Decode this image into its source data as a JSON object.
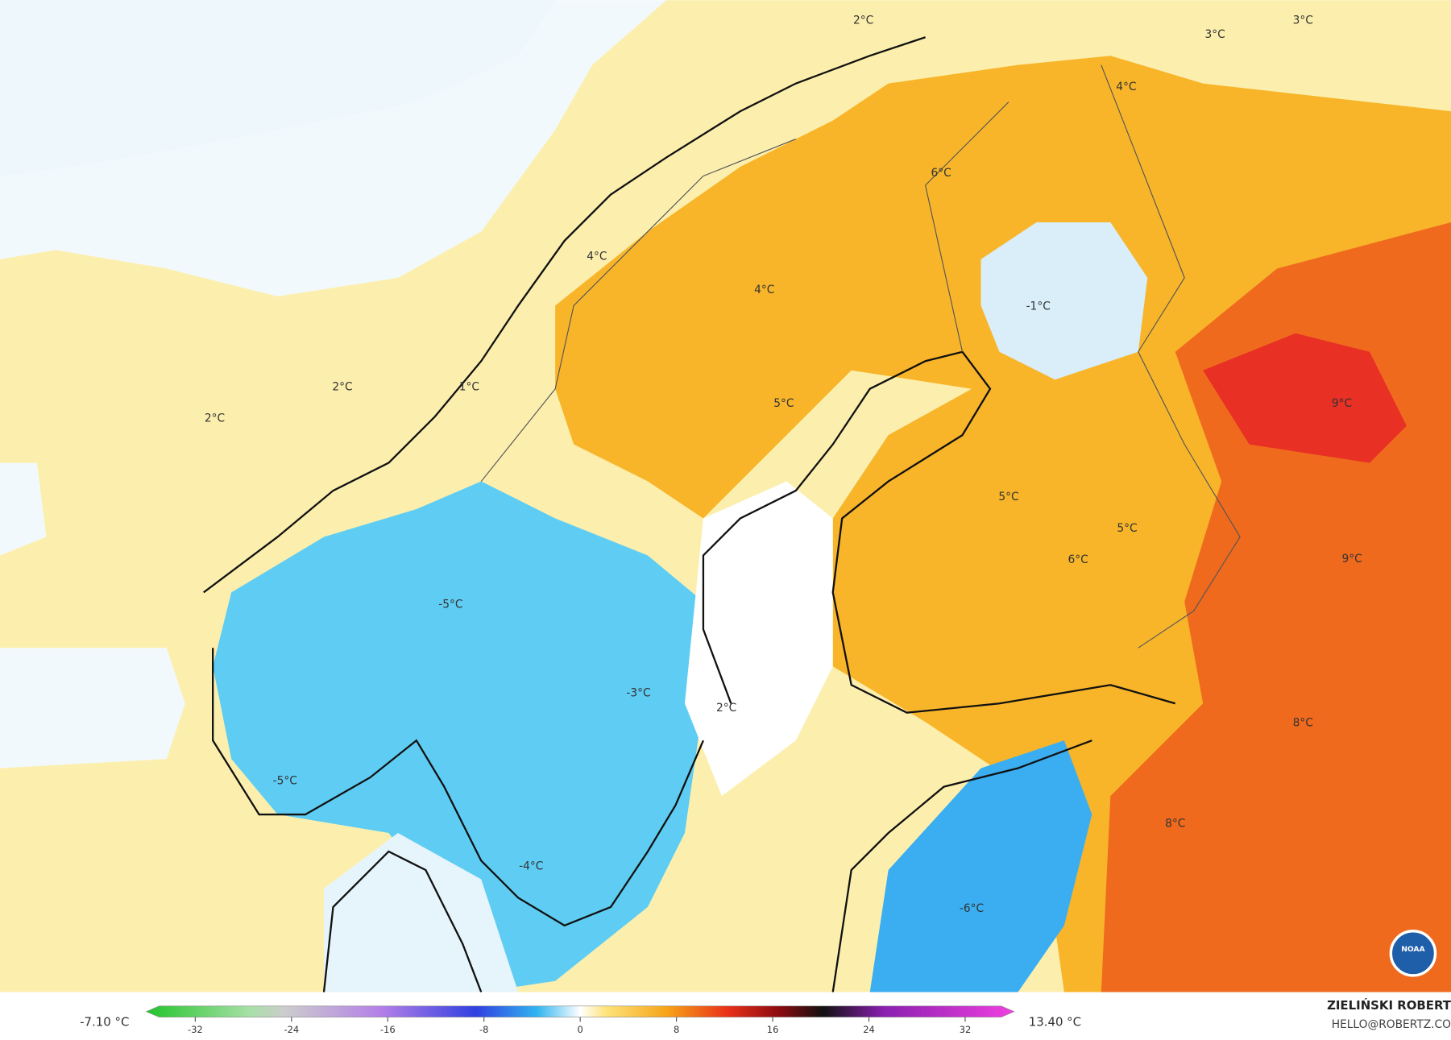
{
  "map": {
    "labels": [
      "2°C",
      "3°C",
      "3°C",
      "4°C",
      "6°C",
      "4°C",
      "4°C",
      "-1°C",
      "2°C",
      "1°C",
      "2°C",
      "5°C",
      "9°C",
      "5°C",
      "5°C",
      "6°C",
      "9°C",
      "-5°C",
      "-3°C",
      "2°C",
      "8°C",
      "-5°C",
      "8°C",
      "-4°C",
      "-6°C"
    ]
  },
  "colorbar": {
    "min_label": "-7.10 °C",
    "max_label": "13.40 °C",
    "range": [
      -35,
      35
    ],
    "ticks": [
      -32,
      -24,
      -16,
      -8,
      0,
      8,
      16,
      24,
      32
    ]
  },
  "credit": {
    "name": "ZIELIŃSKI ROBERT",
    "email": "HELLO@ROBERTZ.CO"
  },
  "logo": "NOAA"
}
